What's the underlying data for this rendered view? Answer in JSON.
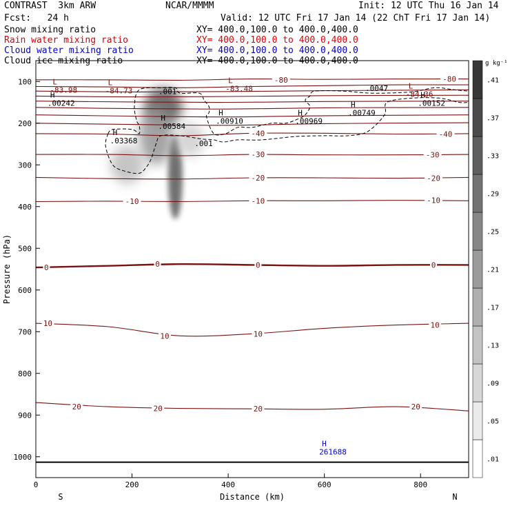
{
  "header": {
    "model": "CONTRAST  3km ARW",
    "center": "NCAR/MMMM",
    "init": "Init: 12 UTC Thu 16 Jan 14",
    "fcst": "Fcst:   24 h",
    "valid": "Valid: 12 UTC Fri 17 Jan 14 (22 ChT Fri 17 Jan 14)"
  },
  "fields": [
    {
      "name": "Snow mixing ratio",
      "xy": "XY= 400.0,100.0 to 400.0,400.0",
      "color": "#000000"
    },
    {
      "name": "Rain water mixing ratio",
      "xy": "XY= 400.0,100.0 to 400.0,400.0",
      "color": "#dd0000"
    },
    {
      "name": "Cloud water mixing ratio",
      "xy": "XY= 400.0,100.0 to 400.0,400.0",
      "color": "#0000cc"
    },
    {
      "name": "Cloud ice mixing ratio",
      "xy": "XY= 400.0,100.0 to 400.0,400.0",
      "color": "#000000"
    }
  ],
  "chart_data": {
    "type": "heatmap",
    "xlabel": "Distance (km)",
    "ylabel": "Pressure (hPa)",
    "xlim": [
      0,
      900
    ],
    "ylim": [
      1050,
      50
    ],
    "x_ticks": [
      0,
      200,
      400,
      600,
      800
    ],
    "y_ticks": [
      100,
      200,
      300,
      400,
      500,
      600,
      700,
      800,
      900,
      1000
    ],
    "end_labels": {
      "left": "S",
      "right": "N"
    },
    "colorbar": {
      "unit": "g kg⁻¹",
      "levels": [
        0.01,
        0.05,
        0.09,
        0.13,
        0.17,
        0.21,
        0.25,
        0.29,
        0.33,
        0.37,
        0.41
      ],
      "tick_labels": [
        ".01",
        ".05",
        ".09",
        ".13",
        ".17",
        ".21",
        ".25",
        ".29",
        ".33",
        ".37",
        ".41"
      ]
    },
    "contour_color": "#7a1010",
    "temperature_contours": [
      {
        "level": -80,
        "label": "-80",
        "points": [
          [
            0,
            96
          ],
          [
            150,
            96
          ],
          [
            300,
            97
          ],
          [
            450,
            94
          ],
          [
            600,
            95
          ],
          [
            750,
            94
          ],
          [
            900,
            94
          ]
        ],
        "labels_at": [
          [
            510,
            96
          ],
          [
            860,
            94
          ]
        ]
      },
      {
        "level": -70,
        "label": "",
        "points": [
          [
            0,
            112
          ],
          [
            150,
            113
          ],
          [
            300,
            115
          ],
          [
            450,
            112
          ],
          [
            600,
            110
          ],
          [
            750,
            108
          ],
          [
            900,
            108
          ]
        ],
        "labels_at": []
      },
      {
        "level": -60,
        "label": "",
        "points": [
          [
            0,
            123
          ],
          [
            200,
            125
          ],
          [
            400,
            124
          ],
          [
            600,
            122
          ],
          [
            900,
            120
          ]
        ],
        "labels_at": []
      },
      {
        "level": -55,
        "label": "",
        "points": [
          [
            0,
            135
          ],
          [
            200,
            137
          ],
          [
            400,
            136
          ],
          [
            600,
            134
          ],
          [
            900,
            133
          ]
        ],
        "labels_at": []
      },
      {
        "level": -50,
        "label": "",
        "points": [
          [
            0,
            147
          ],
          [
            200,
            149
          ],
          [
            400,
            150
          ],
          [
            600,
            148
          ],
          [
            900,
            147
          ]
        ],
        "labels_at": []
      },
      {
        "level": -45,
        "label": "",
        "points": [
          [
            0,
            162
          ],
          [
            200,
            165
          ],
          [
            400,
            166
          ],
          [
            600,
            163
          ],
          [
            900,
            162
          ]
        ],
        "labels_at": []
      },
      {
        "level": -42,
        "label": "",
        "points": [
          [
            0,
            180
          ],
          [
            200,
            183
          ],
          [
            400,
            185
          ],
          [
            600,
            182
          ],
          [
            900,
            180
          ]
        ],
        "labels_at": []
      },
      {
        "level": -41,
        "label": "",
        "points": [
          [
            0,
            200
          ],
          [
            200,
            203
          ],
          [
            400,
            205
          ],
          [
            600,
            201
          ],
          [
            900,
            199
          ]
        ],
        "labels_at": []
      },
      {
        "level": -40,
        "label": "-40",
        "points": [
          [
            0,
            225
          ],
          [
            150,
            226
          ],
          [
            300,
            230
          ],
          [
            450,
            224
          ],
          [
            600,
            224
          ],
          [
            750,
            226
          ],
          [
            900,
            225
          ]
        ],
        "labels_at": [
          [
            462,
            224
          ],
          [
            852,
            226
          ]
        ]
      },
      {
        "level": -30,
        "label": "-30",
        "points": [
          [
            0,
            275
          ],
          [
            150,
            275
          ],
          [
            300,
            278
          ],
          [
            450,
            275
          ],
          [
            600,
            276
          ],
          [
            750,
            276
          ],
          [
            900,
            275
          ]
        ],
        "labels_at": [
          [
            462,
            275
          ],
          [
            825,
            276
          ]
        ]
      },
      {
        "level": -20,
        "label": "-20",
        "points": [
          [
            0,
            330
          ],
          [
            150,
            333
          ],
          [
            300,
            334
          ],
          [
            450,
            331
          ],
          [
            600,
            331
          ],
          [
            750,
            332
          ],
          [
            900,
            330
          ]
        ],
        "labels_at": [
          [
            462,
            331
          ],
          [
            827,
            332
          ]
        ]
      },
      {
        "level": -10,
        "label": "-10",
        "points": [
          [
            0,
            388
          ],
          [
            150,
            387
          ],
          [
            300,
            388
          ],
          [
            450,
            386
          ],
          [
            600,
            386
          ],
          [
            750,
            385
          ],
          [
            900,
            386
          ]
        ],
        "labels_at": [
          [
            200,
            387
          ],
          [
            462,
            386
          ],
          [
            827,
            385
          ]
        ]
      },
      {
        "level": 0,
        "label": "0",
        "points": [
          [
            0,
            546
          ],
          [
            150,
            542
          ],
          [
            300,
            538
          ],
          [
            450,
            540
          ],
          [
            600,
            542
          ],
          [
            750,
            540
          ],
          [
            900,
            540
          ]
        ],
        "labels_at": [
          [
            22,
            546
          ],
          [
            253,
            538
          ],
          [
            462,
            540
          ],
          [
            827,
            540
          ]
        ]
      },
      {
        "level": 10,
        "label": "10",
        "points": [
          [
            0,
            680
          ],
          [
            150,
            688
          ],
          [
            300,
            710
          ],
          [
            450,
            705
          ],
          [
            600,
            692
          ],
          [
            750,
            684
          ],
          [
            900,
            680
          ]
        ],
        "labels_at": [
          [
            25,
            680
          ],
          [
            268,
            710
          ],
          [
            462,
            705
          ],
          [
            830,
            684
          ]
        ]
      },
      {
        "level": 20,
        "label": "20",
        "points": [
          [
            0,
            870
          ],
          [
            150,
            880
          ],
          [
            300,
            884
          ],
          [
            450,
            885
          ],
          [
            600,
            886
          ],
          [
            750,
            880
          ],
          [
            900,
            890
          ]
        ],
        "labels_at": [
          [
            85,
            880
          ],
          [
            254,
            884
          ],
          [
            462,
            885
          ],
          [
            790,
            880
          ]
        ]
      }
    ],
    "highs_lows": [
      {
        "type": "L",
        "value": "-83.98",
        "x": 35,
        "p": 110,
        "color": "#7a1010"
      },
      {
        "type": "L",
        "value": "-84.73",
        "x": 150,
        "p": 112,
        "color": "#7a1010"
      },
      {
        "type": "L",
        "value": "-83.48",
        "x": 400,
        "p": 107,
        "color": "#7a1010"
      },
      {
        "type": "L",
        "value": "-84.36",
        "x": 775,
        "p": 120,
        "color": "#7a1010"
      },
      {
        "type": "H",
        "value": ".00242",
        "x": 30,
        "p": 142,
        "color": "#000000"
      },
      {
        "type": "H",
        "value": ".00584",
        "x": 260,
        "p": 197,
        "color": "#000000"
      },
      {
        "type": "H",
        "value": ".00910",
        "x": 380,
        "p": 185,
        "color": "#000000"
      },
      {
        "type": "H",
        "value": ".00969",
        "x": 545,
        "p": 185,
        "color": "#000000"
      },
      {
        "type": "H",
        "value": ".00749",
        "x": 655,
        "p": 165,
        "color": "#000000"
      },
      {
        "type": "H",
        "value": ".00152",
        "x": 800,
        "p": 142,
        "color": "#000000"
      },
      {
        "type": "H",
        "value": ".03368",
        "x": 160,
        "p": 232,
        "color": "#000000"
      },
      {
        "type": "H",
        "value": "261688",
        "x": 595,
        "p": 978,
        "color": "#0000cc"
      }
    ],
    "extra_labels": [
      {
        "text": ".001",
        "x": 255,
        "p": 130,
        "color": "#000000"
      },
      {
        "text": ".001",
        "x": 330,
        "p": 255,
        "color": "#000000"
      },
      {
        "text": ".0047",
        "x": 685,
        "p": 123,
        "color": "#000000"
      }
    ],
    "snow_field": [
      {
        "x": 265,
        "p": 160,
        "value": 0.35,
        "rx": 40,
        "rp": 45
      },
      {
        "x": 250,
        "p": 230,
        "value": 0.22,
        "rx": 35,
        "rp": 70
      },
      {
        "x": 290,
        "p": 330,
        "value": 0.34,
        "rx": 15,
        "rp": 100
      },
      {
        "x": 190,
        "p": 300,
        "value": 0.14,
        "rx": 35,
        "rp": 45
      },
      {
        "x": 320,
        "p": 240,
        "value": 0.1,
        "rx": 30,
        "rp": 40
      }
    ],
    "ice_outline": [
      [
        150,
        225
      ],
      [
        160,
        215
      ],
      [
        200,
        215
      ],
      [
        215,
        225
      ],
      [
        215,
        205
      ],
      [
        210,
        195
      ],
      [
        205,
        160
      ],
      [
        215,
        120
      ],
      [
        260,
        115
      ],
      [
        290,
        115
      ],
      [
        300,
        128
      ],
      [
        340,
        128
      ],
      [
        350,
        145
      ],
      [
        360,
        160
      ],
      [
        360,
        175
      ],
      [
        355,
        185
      ],
      [
        370,
        225
      ],
      [
        395,
        225
      ],
      [
        420,
        210
      ],
      [
        450,
        210
      ],
      [
        490,
        200
      ],
      [
        520,
        200
      ],
      [
        545,
        190
      ],
      [
        560,
        180
      ],
      [
        570,
        160
      ],
      [
        560,
        145
      ],
      [
        570,
        135
      ],
      [
        580,
        123
      ],
      [
        640,
        123
      ],
      [
        700,
        128
      ],
      [
        780,
        125
      ],
      [
        830,
        115
      ],
      [
        870,
        120
      ],
      [
        900,
        123
      ]
    ],
    "ice_outline_lower": [
      [
        150,
        225
      ],
      [
        145,
        255
      ],
      [
        160,
        300
      ],
      [
        185,
        315
      ],
      [
        215,
        320
      ],
      [
        230,
        305
      ],
      [
        240,
        285
      ],
      [
        250,
        250
      ],
      [
        260,
        230
      ],
      [
        300,
        230
      ],
      [
        345,
        238
      ],
      [
        370,
        240
      ],
      [
        390,
        245
      ],
      [
        420,
        240
      ],
      [
        470,
        240
      ],
      [
        540,
        232
      ],
      [
        600,
        230
      ],
      [
        650,
        230
      ],
      [
        690,
        220
      ],
      [
        725,
        180
      ],
      [
        730,
        150
      ],
      [
        780,
        140
      ],
      [
        840,
        140
      ],
      [
        880,
        150
      ],
      [
        900,
        150
      ]
    ],
    "ground_pressure": 1013
  }
}
